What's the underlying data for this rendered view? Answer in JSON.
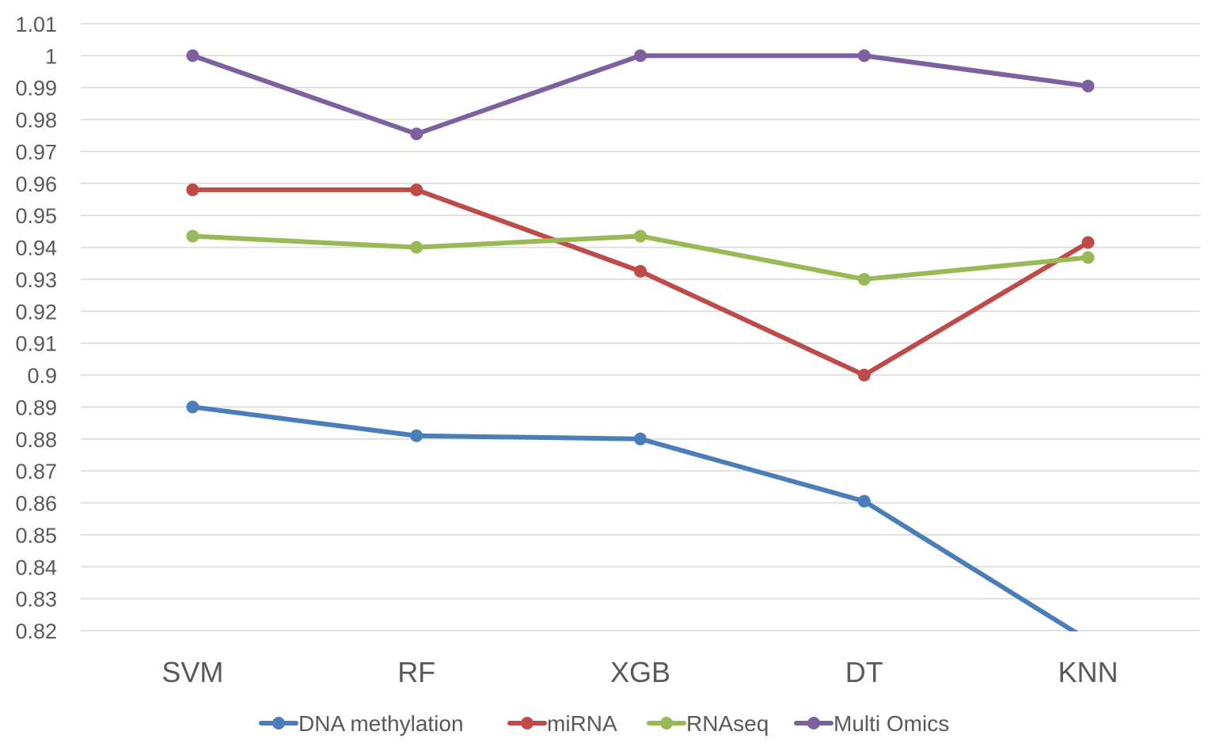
{
  "chart_data": {
    "type": "line",
    "title": "",
    "xlabel": "",
    "ylabel": "",
    "categories": [
      "SVM",
      "RF",
      "XGB",
      "DT",
      "KNN"
    ],
    "ylim": [
      0.82,
      1.01
    ],
    "y_ticks": [
      "0.82",
      "0.83",
      "0.84",
      "0.85",
      "0.86",
      "0.87",
      "0.88",
      "0.89",
      "0.9",
      "0.91",
      "0.92",
      "0.93",
      "0.94",
      "0.95",
      "0.96",
      "0.97",
      "0.98",
      "0.99",
      "1",
      "1.01"
    ],
    "grid": true,
    "legend_position": "bottom",
    "series": [
      {
        "name": "DNA methylation",
        "color": "#4a7ebb",
        "values": [
          0.89,
          0.881,
          0.88,
          0.8605,
          0.817
        ]
      },
      {
        "name": "miRNA",
        "color": "#be4b48",
        "values": [
          0.958,
          0.958,
          0.9325,
          0.9,
          0.9415
        ]
      },
      {
        "name": "RNAseq",
        "color": "#98b954",
        "values": [
          0.9435,
          0.94,
          0.9435,
          0.93,
          0.9368
        ]
      },
      {
        "name": "Multi Omics",
        "color": "#7d60a0",
        "values": [
          1.0,
          0.9755,
          1.0,
          1.0,
          0.9905
        ]
      }
    ]
  }
}
